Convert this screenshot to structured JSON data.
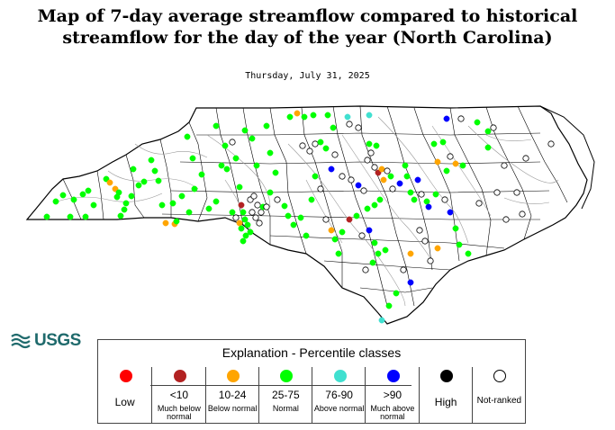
{
  "title_line1": "Map of 7-day average streamflow compared to historical",
  "title_line2": "streamflow for the day of the year (North Carolina)",
  "date": "Thursday, July 31, 2025",
  "logo_text": "USGS",
  "legend": {
    "title": "Explanation - Percentile classes",
    "classes": [
      {
        "label": "Low",
        "sub": "",
        "color": "#ff0000"
      },
      {
        "label": "<10",
        "sub": "Much below normal",
        "color": "#b22222"
      },
      {
        "label": "10-24",
        "sub": "Below normal",
        "color": "#ffa500"
      },
      {
        "label": "25-75",
        "sub": "Normal",
        "color": "#00ff00"
      },
      {
        "label": "76-90",
        "sub": "Above normal",
        "color": "#40e0d0"
      },
      {
        "label": ">90",
        "sub": "Much above normal",
        "color": "#0000ff"
      },
      {
        "label": "High",
        "sub": "",
        "color": "#000000"
      },
      {
        "label": "Not-ranked",
        "sub": "",
        "color": "#ffffff"
      }
    ]
  },
  "colors": {
    "county_border": "#000000",
    "river": "#999999",
    "usgs_teal": "#1f6a6c"
  }
}
